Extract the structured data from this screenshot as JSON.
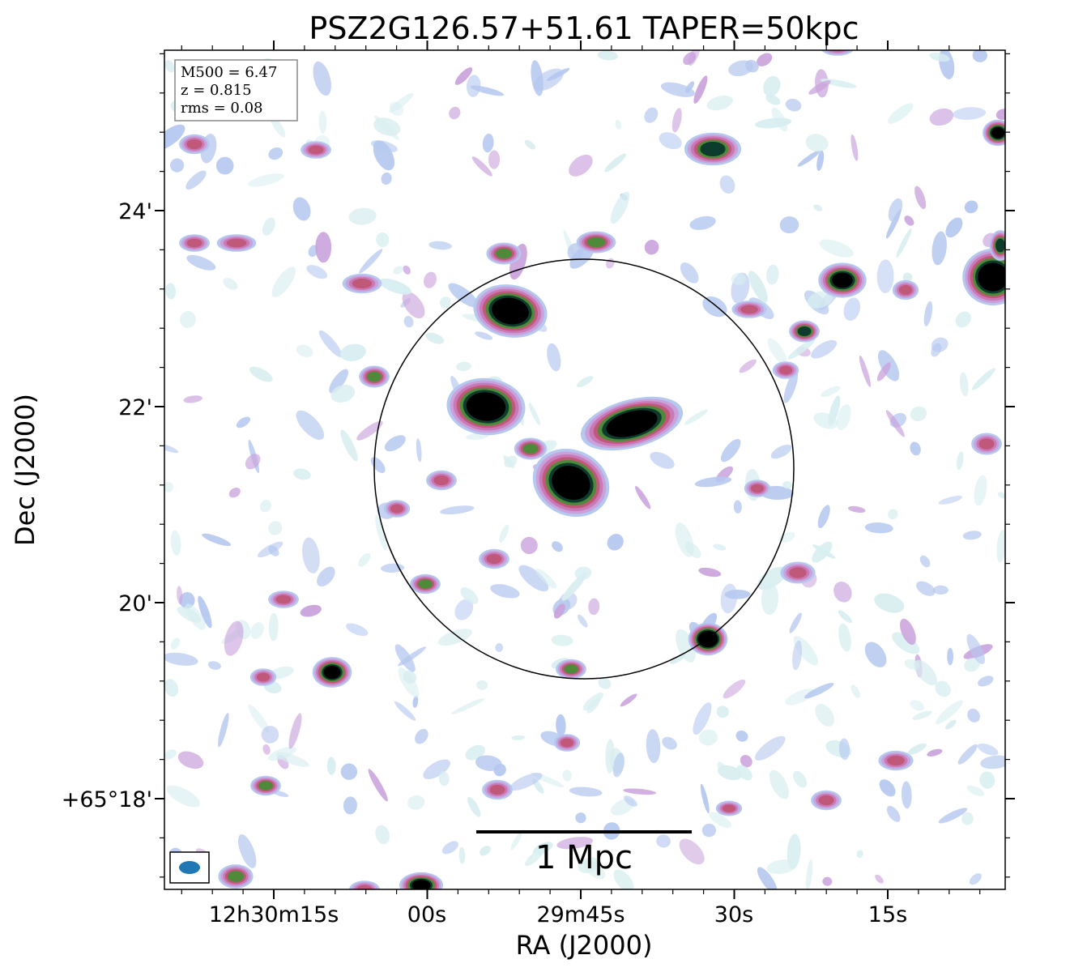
{
  "chart_data": {
    "type": "heatmap",
    "title": "PSZ2G126.57+51.61 TAPER=50kpc",
    "xlabel": "RA (J2000)",
    "ylabel": "Dec (J2000)",
    "x_ticks": [
      "12h30m15s",
      "00s",
      "29m45s",
      "30s",
      "15s"
    ],
    "y_ticks": [
      "+65°18'",
      "20'",
      "22'",
      "24'"
    ],
    "stats": {
      "m500": "M500 = 6.47",
      "z": "z = 0.815",
      "rms": "rms = 0.08"
    },
    "scale_bar": "1 Mpc",
    "colormap": [
      "#d8eef0",
      "#b5c8ef",
      "#c9a2dc",
      "#c879b6",
      "#c0587a",
      "#4e8a3a",
      "#0d3b2c",
      "#000000"
    ],
    "circle": "R500 aperture",
    "beam_color": "#1f77b4"
  }
}
